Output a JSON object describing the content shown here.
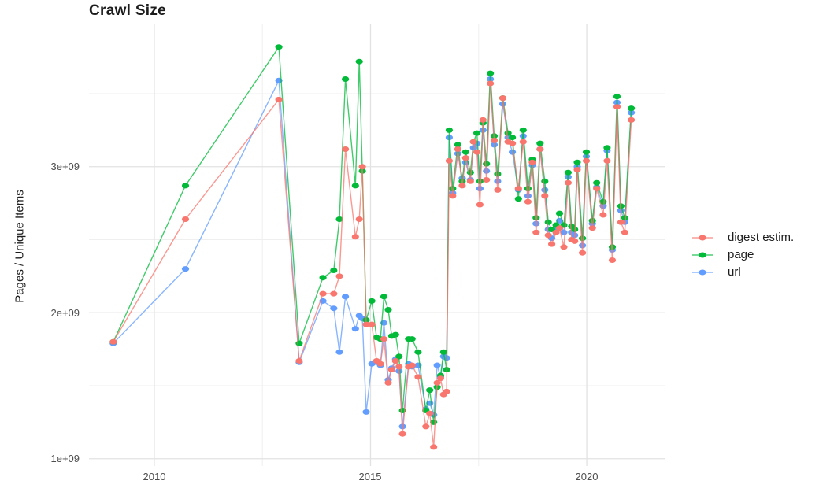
{
  "chart_data": {
    "type": "line",
    "title": "Crawl Size",
    "xlabel": "",
    "ylabel": "Pages / Unique Items",
    "unit": "values are pages/items in units of 1e+09 (billions)",
    "grid": true,
    "legend_position": "right",
    "x_range": [
      2008.49,
      2021.82
    ],
    "y_range": [
      0.95,
      3.98
    ],
    "x_ticks": {
      "values": [
        2010,
        2015,
        2020
      ],
      "labels": [
        "2010",
        "2015",
        "2020"
      ]
    },
    "x_minor": [
      2012.5,
      2017.5
    ],
    "y_ticks": {
      "values": [
        1.0,
        2.0,
        3.0
      ],
      "labels": [
        "1e+09",
        "2e+09",
        "3e+09"
      ]
    },
    "y_minor": [
      1.5,
      2.5,
      3.5
    ],
    "x": [
      2009.05,
      2010.72,
      2012.88,
      2013.35,
      2013.9,
      2014.15,
      2014.28,
      2014.42,
      2014.65,
      2014.74,
      2014.81,
      2014.9,
      2015.03,
      2015.14,
      2015.23,
      2015.31,
      2015.41,
      2015.49,
      2015.58,
      2015.66,
      2015.74,
      2015.88,
      2015.96,
      2016.1,
      2016.28,
      2016.37,
      2016.46,
      2016.54,
      2016.62,
      2016.69,
      2016.76,
      2016.82,
      2016.9,
      2017.02,
      2017.12,
      2017.2,
      2017.31,
      2017.38,
      2017.46,
      2017.53,
      2017.6,
      2017.68,
      2017.77,
      2017.86,
      2017.94,
      2018.06,
      2018.18,
      2018.28,
      2018.42,
      2018.53,
      2018.64,
      2018.74,
      2018.83,
      2018.92,
      2019.03,
      2019.11,
      2019.19,
      2019.29,
      2019.37,
      2019.47,
      2019.57,
      2019.65,
      2019.72,
      2019.78,
      2019.9,
      2019.99,
      2020.13,
      2020.23,
      2020.38,
      2020.47,
      2020.59,
      2020.7,
      2020.79,
      2020.88,
      2021.03
    ],
    "series": [
      {
        "name": "digest estim.",
        "color": "#F8766D",
        "values": [
          1.8,
          2.64,
          3.46,
          1.67,
          2.13,
          2.13,
          2.25,
          3.12,
          2.52,
          2.64,
          3.0,
          1.92,
          1.92,
          1.67,
          1.65,
          1.82,
          1.52,
          1.61,
          1.67,
          1.63,
          1.17,
          1.63,
          1.64,
          1.56,
          1.22,
          1.31,
          1.08,
          1.52,
          1.55,
          1.44,
          1.46,
          3.04,
          2.8,
          3.12,
          2.87,
          3.06,
          2.9,
          3.17,
          3.1,
          2.74,
          3.32,
          2.91,
          3.57,
          3.18,
          2.84,
          3.47,
          3.17,
          3.16,
          2.85,
          3.17,
          2.76,
          3.03,
          2.55,
          3.12,
          2.8,
          2.53,
          2.47,
          2.55,
          2.58,
          2.45,
          2.89,
          2.5,
          2.49,
          2.98,
          2.41,
          3.04,
          2.58,
          2.85,
          2.67,
          3.04,
          2.36,
          3.41,
          2.62,
          2.55,
          3.32
        ]
      },
      {
        "name": "page",
        "color": "#00BA38",
        "values": [
          1.8,
          2.87,
          3.82,
          1.79,
          2.24,
          2.29,
          2.64,
          3.6,
          2.87,
          3.72,
          2.97,
          1.95,
          2.08,
          1.83,
          1.82,
          2.11,
          2.02,
          1.84,
          1.85,
          1.7,
          1.33,
          1.82,
          1.82,
          1.73,
          1.33,
          1.47,
          1.25,
          1.49,
          1.57,
          1.73,
          1.61,
          3.25,
          2.85,
          3.15,
          2.9,
          3.1,
          2.96,
          3.17,
          3.23,
          2.9,
          3.3,
          3.02,
          3.64,
          3.21,
          2.95,
          3.47,
          3.23,
          3.2,
          2.78,
          3.25,
          2.85,
          3.05,
          2.65,
          3.16,
          2.9,
          2.62,
          2.57,
          2.6,
          2.68,
          2.6,
          2.96,
          2.59,
          2.57,
          3.03,
          2.51,
          3.1,
          2.63,
          2.89,
          2.76,
          3.13,
          2.45,
          3.48,
          2.73,
          2.65,
          3.4
        ]
      },
      {
        "name": "url",
        "color": "#619CFF",
        "values": [
          1.79,
          2.3,
          3.59,
          1.66,
          2.08,
          2.03,
          1.73,
          2.11,
          1.89,
          1.98,
          1.96,
          1.32,
          1.65,
          1.66,
          1.64,
          1.93,
          1.54,
          1.62,
          1.68,
          1.6,
          1.22,
          1.65,
          1.63,
          1.64,
          1.34,
          1.38,
          1.3,
          1.64,
          1.56,
          1.7,
          1.69,
          3.2,
          2.82,
          3.09,
          2.92,
          3.03,
          2.91,
          3.13,
          3.16,
          2.85,
          3.25,
          2.97,
          3.6,
          3.15,
          2.9,
          3.43,
          3.2,
          3.1,
          2.84,
          3.21,
          2.8,
          3.01,
          2.61,
          3.12,
          2.84,
          2.57,
          2.51,
          2.58,
          2.63,
          2.55,
          2.93,
          2.55,
          2.53,
          3.0,
          2.46,
          3.07,
          2.61,
          2.86,
          2.73,
          3.11,
          2.43,
          3.44,
          2.7,
          2.62,
          3.37
        ]
      }
    ],
    "style": {
      "grid_major_color": "#e2e2e2",
      "grid_minor_color": "#efefef",
      "background": "#ffffff"
    }
  }
}
